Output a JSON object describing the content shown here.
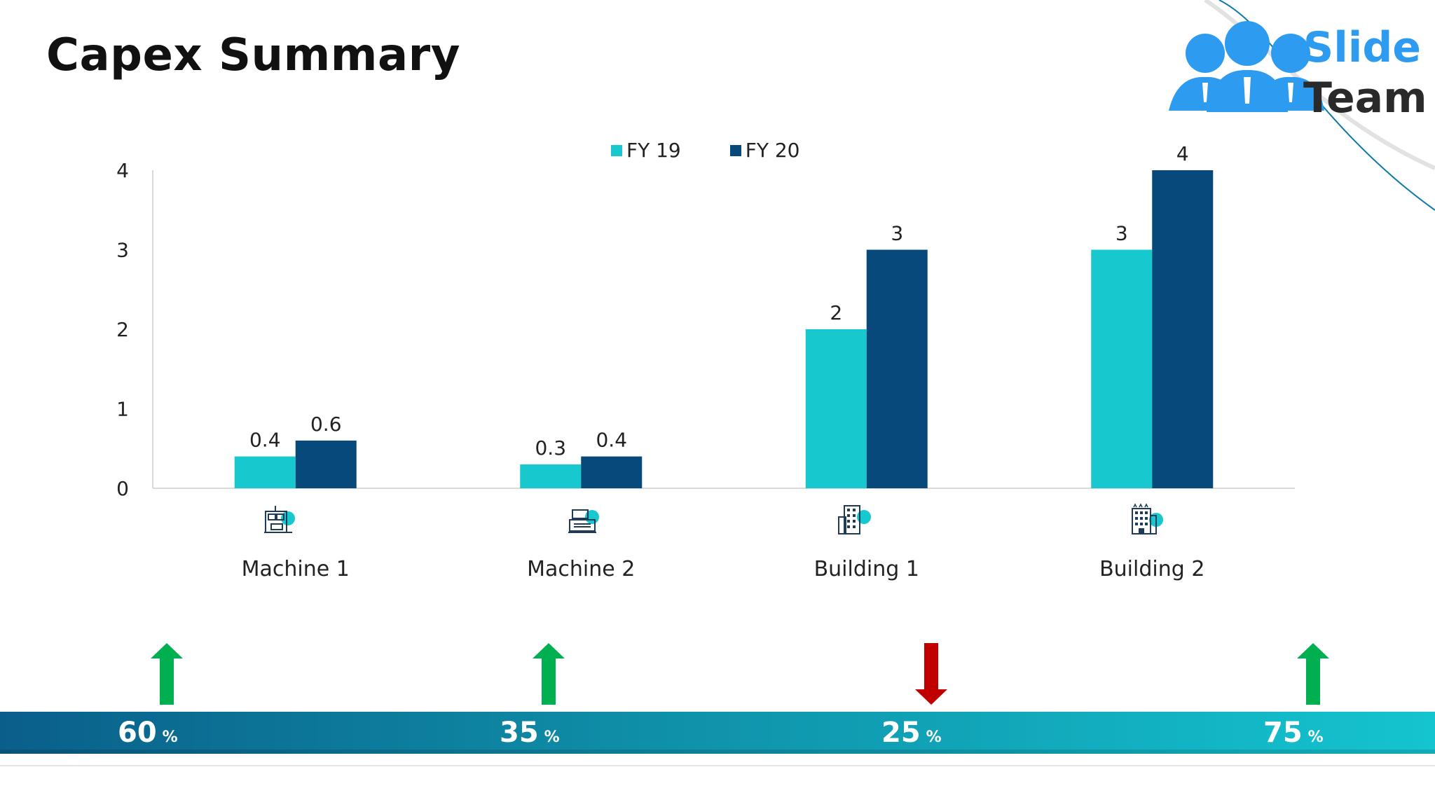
{
  "page": {
    "title": "Capex Summary"
  },
  "logo": {
    "line1": "Slide",
    "line2": "Team"
  },
  "colors": {
    "fy19": "#17c9cf",
    "fy20": "#06497a",
    "up": "#00b050",
    "down": "#c00000"
  },
  "chart_data": {
    "type": "bar",
    "categories": [
      "Machine 1",
      "Machine 2",
      "Building 1",
      "Building 2"
    ],
    "series": [
      {
        "name": "FY 19",
        "values": [
          0.4,
          0.3,
          2,
          3
        ]
      },
      {
        "name": "FY 20",
        "values": [
          0.6,
          0.4,
          3,
          4
        ]
      }
    ],
    "data_labels": [
      [
        "0.4",
        "0.3",
        "2",
        "3"
      ],
      [
        "0.6",
        "0.4",
        "3",
        "4"
      ]
    ],
    "yticks": [
      "0",
      "1",
      "2",
      "3",
      "4"
    ],
    "ylim": [
      0,
      4
    ],
    "legend": "top-center",
    "grid": false
  },
  "category_icons": [
    "machine-icon",
    "cash-register-icon",
    "office-building-icon",
    "hotel-building-icon"
  ],
  "changes": [
    {
      "value": "60",
      "unit": "%",
      "direction": "up"
    },
    {
      "value": "35",
      "unit": "%",
      "direction": "up"
    },
    {
      "value": "25",
      "unit": "%",
      "direction": "down"
    },
    {
      "value": "75",
      "unit": "%",
      "direction": "up"
    }
  ]
}
